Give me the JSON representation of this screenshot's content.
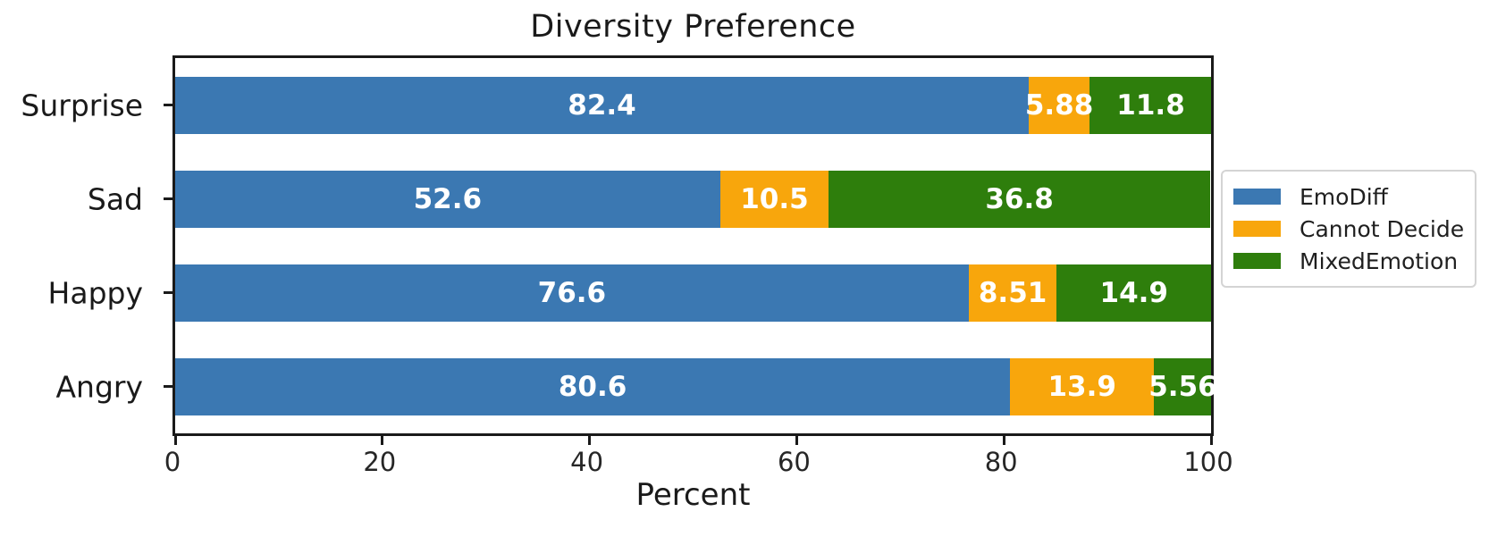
{
  "chart_data": {
    "type": "bar",
    "variant": "horizontal-stacked",
    "title": "Diversity Preference",
    "xlabel": "Percent",
    "ylabel": "",
    "categories": [
      "Surprise",
      "Sad",
      "Happy",
      "Angry"
    ],
    "series": [
      {
        "name": "EmoDiff",
        "color": "#3B78B2",
        "values": [
          82.4,
          52.6,
          76.6,
          80.6
        ],
        "labels": [
          "82.4",
          "52.6",
          "76.6",
          "80.6"
        ]
      },
      {
        "name": "Cannot Decide",
        "color": "#F8A60C",
        "values": [
          5.88,
          10.5,
          8.51,
          13.9
        ],
        "labels": [
          "5.88",
          "10.5",
          "8.51",
          "13.9"
        ]
      },
      {
        "name": "MixedEmotion",
        "color": "#2E7E0C",
        "values": [
          11.8,
          36.8,
          14.9,
          5.56
        ],
        "labels": [
          "11.8",
          "36.8",
          "14.9",
          "5.56"
        ]
      }
    ],
    "x_ticks": [
      0,
      20,
      40,
      60,
      80,
      100
    ],
    "xlim": [
      0,
      100
    ],
    "grid": false,
    "legend_position": "outside-right",
    "bar_label_style": "white-bold-centered",
    "colors": {
      "spine": "#1a1a1a",
      "text": "#1a1a1a",
      "bar_label": "#ffffff",
      "background": "#ffffff",
      "legend_border": "#d4d4d4"
    }
  }
}
